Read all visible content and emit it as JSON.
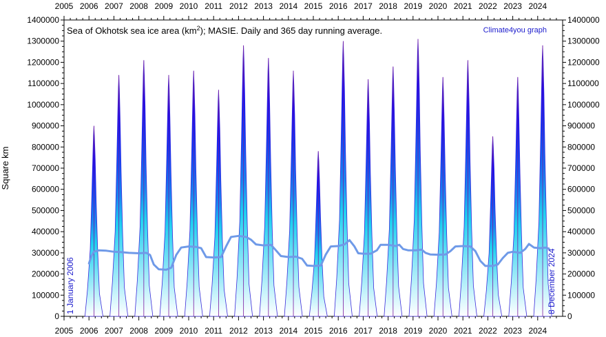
{
  "chart_data": {
    "type": "area",
    "title_main": "Sea of Okhotsk sea ice area (km",
    "title_sup": "2",
    "title_rest": "); MASIE. Daily and 365 day running average.",
    "credit": "Climate4you graph",
    "ylabel": "Square km",
    "start_label": "1 January 2006",
    "end_label": "8 December 2024",
    "ylim": [
      0,
      1400000
    ],
    "yticks": [
      "0",
      "100000",
      "200000",
      "300000",
      "400000",
      "500000",
      "600000",
      "700000",
      "800000",
      "900000",
      "1000000",
      "1100000",
      "1200000",
      "1300000",
      "1400000"
    ],
    "xlim": [
      2005,
      2025
    ],
    "xticks": [
      "2005",
      "2006",
      "2007",
      "2008",
      "2009",
      "2010",
      "2011",
      "2012",
      "2013",
      "2014",
      "2015",
      "2016",
      "2017",
      "2018",
      "2019",
      "2020",
      "2021",
      "2022",
      "2023",
      "2024"
    ],
    "grid": false,
    "series": [
      {
        "values_peak_by_year": [
          {
            "year": 2006,
            "peak": 900000
          },
          {
            "year": 2007,
            "peak": 1140000
          },
          {
            "year": 2008,
            "peak": 1210000
          },
          {
            "year": 2009,
            "peak": 1140000
          },
          {
            "year": 2010,
            "peak": 1160000
          },
          {
            "year": 2011,
            "peak": 1070000
          },
          {
            "year": 2012,
            "peak": 1280000
          },
          {
            "year": 2013,
            "peak": 1220000
          },
          {
            "year": 2014,
            "peak": 1160000
          },
          {
            "year": 2015,
            "peak": 780000
          },
          {
            "year": 2016,
            "peak": 1300000
          },
          {
            "year": 2017,
            "peak": 1120000
          },
          {
            "year": 2018,
            "peak": 1180000
          },
          {
            "year": 2019,
            "peak": 1310000
          },
          {
            "year": 2020,
            "peak": 1130000
          },
          {
            "year": 2021,
            "peak": 1210000
          },
          {
            "year": 2022,
            "peak": 850000
          },
          {
            "year": 2023,
            "peak": 1130000
          },
          {
            "year": 2024,
            "peak": 1280000
          }
        ]
      },
      {
        "points": [
          [
            2006.0,
            250000
          ],
          [
            2006.1,
            285000
          ],
          [
            2006.2,
            305000
          ],
          [
            2006.4,
            312000
          ],
          [
            2006.7,
            310000
          ],
          [
            2007.0,
            305000
          ],
          [
            2007.3,
            303000
          ],
          [
            2007.6,
            300000
          ],
          [
            2008.0,
            298000
          ],
          [
            2008.3,
            300000
          ],
          [
            2008.45,
            290000
          ],
          [
            2008.6,
            245000
          ],
          [
            2008.8,
            222000
          ],
          [
            2009.1,
            220000
          ],
          [
            2009.3,
            230000
          ],
          [
            2009.5,
            290000
          ],
          [
            2009.7,
            325000
          ],
          [
            2010.0,
            330000
          ],
          [
            2010.3,
            328000
          ],
          [
            2010.5,
            322000
          ],
          [
            2010.7,
            280000
          ],
          [
            2011.0,
            278000
          ],
          [
            2011.3,
            280000
          ],
          [
            2011.5,
            330000
          ],
          [
            2011.7,
            375000
          ],
          [
            2012.0,
            380000
          ],
          [
            2012.3,
            375000
          ],
          [
            2012.5,
            362000
          ],
          [
            2012.7,
            340000
          ],
          [
            2013.0,
            335000
          ],
          [
            2013.3,
            338000
          ],
          [
            2013.5,
            312000
          ],
          [
            2013.7,
            285000
          ],
          [
            2014.0,
            280000
          ],
          [
            2014.3,
            282000
          ],
          [
            2014.55,
            272000
          ],
          [
            2014.75,
            240000
          ],
          [
            2015.0,
            238000
          ],
          [
            2015.3,
            240000
          ],
          [
            2015.5,
            292000
          ],
          [
            2015.7,
            330000
          ],
          [
            2016.0,
            332000
          ],
          [
            2016.25,
            340000
          ],
          [
            2016.45,
            360000
          ],
          [
            2016.65,
            330000
          ],
          [
            2016.8,
            298000
          ],
          [
            2017.0,
            296000
          ],
          [
            2017.3,
            296000
          ],
          [
            2017.55,
            312000
          ],
          [
            2017.7,
            338000
          ],
          [
            2018.0,
            338000
          ],
          [
            2018.3,
            332000
          ],
          [
            2018.45,
            338000
          ],
          [
            2018.6,
            318000
          ],
          [
            2018.8,
            312000
          ],
          [
            2019.1,
            312000
          ],
          [
            2019.35,
            315000
          ],
          [
            2019.5,
            300000
          ],
          [
            2019.7,
            292000
          ],
          [
            2020.0,
            291000
          ],
          [
            2020.3,
            292000
          ],
          [
            2020.5,
            308000
          ],
          [
            2020.7,
            330000
          ],
          [
            2021.0,
            332000
          ],
          [
            2021.3,
            330000
          ],
          [
            2021.5,
            308000
          ],
          [
            2021.7,
            262000
          ],
          [
            2021.9,
            238000
          ],
          [
            2022.2,
            238000
          ],
          [
            2022.4,
            245000
          ],
          [
            2022.6,
            275000
          ],
          [
            2022.8,
            300000
          ],
          [
            2023.0,
            305000
          ],
          [
            2023.3,
            300000
          ],
          [
            2023.5,
            318000
          ],
          [
            2023.65,
            342000
          ],
          [
            2023.85,
            325000
          ],
          [
            2024.1,
            322000
          ],
          [
            2024.3,
            325000
          ],
          [
            2024.45,
            320000
          ]
        ]
      }
    ]
  }
}
